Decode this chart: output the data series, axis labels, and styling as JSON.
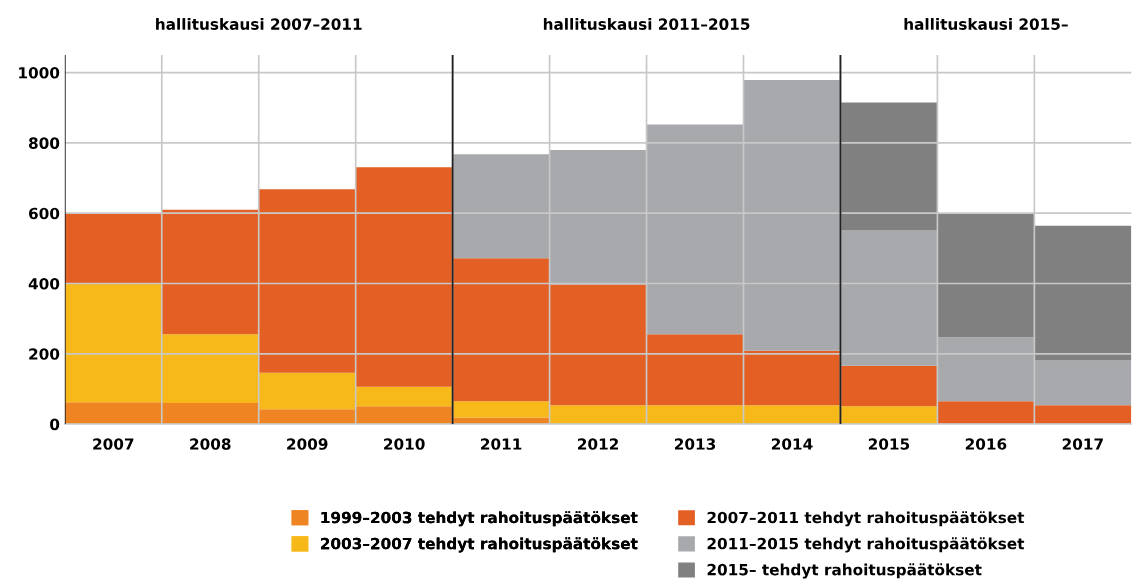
{
  "chart_data": {
    "type": "bar",
    "stacked": true,
    "categories": [
      "2007",
      "2008",
      "2009",
      "2010",
      "2011",
      "2012",
      "2013",
      "2014",
      "2015",
      "2016",
      "2017"
    ],
    "series": [
      {
        "name": "1999–2003 tehdyt rahoituspäätökset",
        "color": "#ee8422",
        "values": [
          62,
          60,
          42,
          51,
          19,
          0,
          0,
          0,
          0,
          0,
          0
        ]
      },
      {
        "name": "2003–2007 tehdyt rahoituspäätökset",
        "color": "#f7b91a",
        "values": [
          337,
          196,
          104,
          55,
          46,
          54,
          54,
          54,
          51,
          0,
          0
        ]
      },
      {
        "name": "2007–2011 tehdyt rahoituspäätökset",
        "color": "#e35f24",
        "values": [
          201,
          354,
          522,
          625,
          407,
          343,
          202,
          155,
          115,
          65,
          54
        ]
      },
      {
        "name": "2011–2015 tehdyt rahoituspäätökset",
        "color": "#a8a9ac",
        "values": [
          0,
          0,
          0,
          0,
          296,
          383,
          596,
          770,
          386,
          182,
          127
        ]
      },
      {
        "name": "2015– tehdyt rahoituspäätökset",
        "color": "#808080",
        "values": [
          0,
          0,
          0,
          0,
          0,
          0,
          0,
          0,
          363,
          351,
          383
        ]
      }
    ],
    "ylim": [
      0,
      1050
    ],
    "yticks": [
      0,
      200,
      400,
      600,
      800,
      1000
    ],
    "grid": true,
    "legend": "bottom",
    "annotations": [
      "hallituskausi 2007–2011",
      "hallituskausi 2011–2015",
      "hallituskausi 2015–"
    ]
  }
}
